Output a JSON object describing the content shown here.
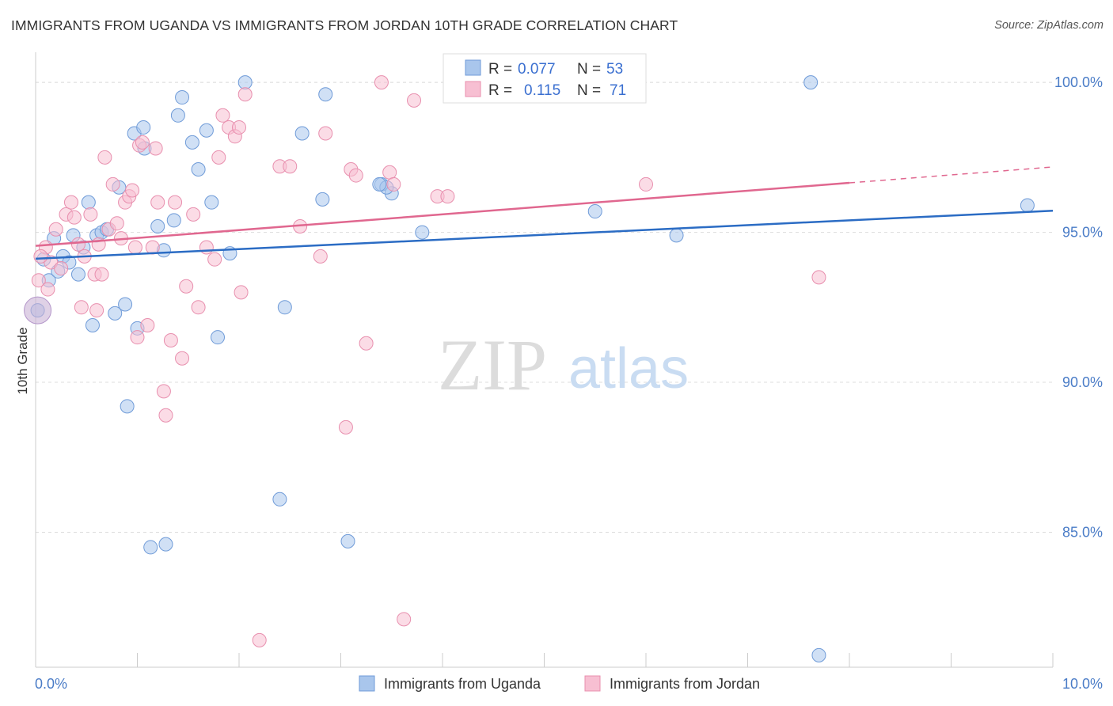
{
  "title": "IMMIGRANTS FROM UGANDA VS IMMIGRANTS FROM JORDAN 10TH GRADE CORRELATION CHART",
  "source": "Source: ZipAtlas.com",
  "watermark": {
    "zip": "ZIP",
    "atlas": "atlas"
  },
  "chart_data": {
    "type": "scatter",
    "ylabel": "10th Grade",
    "xlim": [
      0,
      10
    ],
    "ylim": [
      80.5,
      100.9
    ],
    "x_tick_labels": [
      "0.0%",
      "10.0%"
    ],
    "y_ticks": [
      85,
      90,
      95,
      100
    ],
    "y_tick_labels": [
      "85.0%",
      "90.0%",
      "95.0%",
      "100.0%"
    ],
    "grid": true,
    "legend_position": "bottom",
    "stats": {
      "r_label": "R =",
      "n_label": "N =",
      "rows": [
        {
          "r": "0.077",
          "n": "53"
        },
        {
          "r": "0.115",
          "n": "71"
        }
      ]
    },
    "series": [
      {
        "name": "Immigrants from Uganda",
        "color": "#a9c6ec",
        "stroke": "#6f9bd8",
        "line_color": "#2b6cc4",
        "trend": {
          "x0": 0,
          "y0": 94.12,
          "x1": 10,
          "y1": 95.72
        },
        "points": [
          [
            0.02,
            92.4
          ],
          [
            0.08,
            94.1
          ],
          [
            0.13,
            93.4
          ],
          [
            0.18,
            94.8
          ],
          [
            0.22,
            93.7
          ],
          [
            0.27,
            94.2
          ],
          [
            0.33,
            94.0
          ],
          [
            0.37,
            94.9
          ],
          [
            0.42,
            93.6
          ],
          [
            0.47,
            94.5
          ],
          [
            0.52,
            96.0
          ],
          [
            0.56,
            91.9
          ],
          [
            0.6,
            94.9
          ],
          [
            0.65,
            95.0
          ],
          [
            0.7,
            95.1
          ],
          [
            0.78,
            92.3
          ],
          [
            0.82,
            96.5
          ],
          [
            0.88,
            92.6
          ],
          [
            0.9,
            89.2
          ],
          [
            0.97,
            98.3
          ],
          [
            1.0,
            91.8
          ],
          [
            1.06,
            98.5
          ],
          [
            1.07,
            97.8
          ],
          [
            1.13,
            84.5
          ],
          [
            1.2,
            95.2
          ],
          [
            1.26,
            94.4
          ],
          [
            1.28,
            84.6
          ],
          [
            1.36,
            95.4
          ],
          [
            1.4,
            98.9
          ],
          [
            1.44,
            99.5
          ],
          [
            1.54,
            98.0
          ],
          [
            1.6,
            97.1
          ],
          [
            1.68,
            98.4
          ],
          [
            1.73,
            96.0
          ],
          [
            1.79,
            91.5
          ],
          [
            1.91,
            94.3
          ],
          [
            2.06,
            100.0
          ],
          [
            2.4,
            86.1
          ],
          [
            2.45,
            92.5
          ],
          [
            2.62,
            98.3
          ],
          [
            2.82,
            96.1
          ],
          [
            2.85,
            99.6
          ],
          [
            3.07,
            84.7
          ],
          [
            3.4,
            96.6
          ],
          [
            3.5,
            96.3
          ],
          [
            3.45,
            96.5
          ],
          [
            3.8,
            95.0
          ],
          [
            5.5,
            95.7
          ],
          [
            6.3,
            94.9
          ],
          [
            7.7,
            80.9
          ],
          [
            7.62,
            100.0
          ],
          [
            9.75,
            95.9
          ],
          [
            3.38,
            96.6
          ]
        ]
      },
      {
        "name": "Immigrants from Jordan",
        "color": "#f7bfd2",
        "stroke": "#e88fae",
        "line_color": "#e0678f",
        "trend": {
          "x0": 0,
          "y0": 94.55,
          "x1": 8.0,
          "y1": 96.65
        },
        "trend_dash_to": {
          "x": 10,
          "y": 97.18
        },
        "points": [
          [
            0.03,
            93.4
          ],
          [
            0.1,
            94.5
          ],
          [
            0.15,
            94.0
          ],
          [
            0.2,
            95.1
          ],
          [
            0.25,
            93.8
          ],
          [
            0.3,
            95.6
          ],
          [
            0.35,
            96.0
          ],
          [
            0.38,
            95.5
          ],
          [
            0.42,
            94.6
          ],
          [
            0.45,
            92.5
          ],
          [
            0.48,
            94.2
          ],
          [
            0.54,
            95.6
          ],
          [
            0.58,
            93.6
          ],
          [
            0.6,
            92.4
          ],
          [
            0.65,
            93.6
          ],
          [
            0.68,
            97.5
          ],
          [
            0.72,
            95.1
          ],
          [
            0.76,
            96.6
          ],
          [
            0.8,
            95.3
          ],
          [
            0.84,
            94.8
          ],
          [
            0.88,
            96.0
          ],
          [
            0.92,
            96.2
          ],
          [
            0.95,
            96.4
          ],
          [
            0.98,
            94.5
          ],
          [
            1.0,
            91.5
          ],
          [
            1.02,
            97.9
          ],
          [
            1.05,
            98.0
          ],
          [
            1.1,
            91.9
          ],
          [
            1.15,
            94.5
          ],
          [
            1.18,
            97.8
          ],
          [
            1.2,
            96.0
          ],
          [
            1.26,
            89.7
          ],
          [
            1.28,
            88.9
          ],
          [
            1.33,
            91.4
          ],
          [
            1.37,
            96.0
          ],
          [
            1.44,
            90.8
          ],
          [
            1.48,
            93.2
          ],
          [
            1.55,
            95.6
          ],
          [
            1.6,
            92.5
          ],
          [
            1.68,
            94.5
          ],
          [
            1.76,
            94.1
          ],
          [
            1.8,
            97.5
          ],
          [
            1.84,
            98.9
          ],
          [
            1.9,
            98.5
          ],
          [
            1.96,
            98.2
          ],
          [
            2.0,
            98.5
          ],
          [
            2.02,
            93.0
          ],
          [
            2.06,
            99.6
          ],
          [
            2.2,
            81.4
          ],
          [
            2.4,
            97.2
          ],
          [
            2.5,
            97.2
          ],
          [
            2.6,
            95.2
          ],
          [
            2.8,
            94.2
          ],
          [
            2.85,
            98.3
          ],
          [
            3.05,
            88.5
          ],
          [
            3.1,
            97.1
          ],
          [
            3.15,
            96.9
          ],
          [
            3.25,
            91.3
          ],
          [
            3.4,
            100.0
          ],
          [
            3.48,
            97.0
          ],
          [
            3.52,
            96.6
          ],
          [
            3.62,
            82.1
          ],
          [
            3.72,
            99.4
          ],
          [
            3.95,
            96.2
          ],
          [
            4.05,
            96.2
          ],
          [
            4.6,
            100.0
          ],
          [
            6.0,
            96.6
          ],
          [
            7.7,
            93.5
          ],
          [
            0.05,
            94.2
          ],
          [
            0.12,
            93.1
          ],
          [
            0.62,
            94.6
          ]
        ]
      }
    ]
  }
}
